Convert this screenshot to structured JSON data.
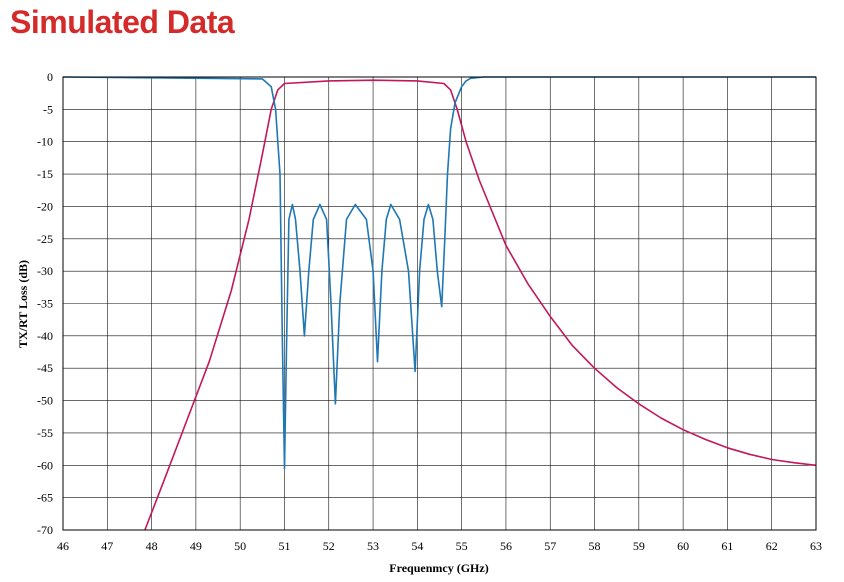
{
  "header": {
    "title": "Simulated Data"
  },
  "chart_data": {
    "type": "line",
    "xlabel": "Frequenmcy (GHz)",
    "ylabel": "TX/RT Loss (dB)",
    "xlim": [
      46,
      63
    ],
    "ylim": [
      -70,
      0
    ],
    "xticks": [
      "46",
      "47",
      "48",
      "49",
      "50",
      "51",
      "52",
      "53",
      "54",
      "55",
      "56",
      "57",
      "58",
      "59",
      "60",
      "61",
      "62",
      "63"
    ],
    "yticks": [
      "0",
      "-5",
      "-10",
      "-15",
      "-20",
      "-25",
      "-30",
      "-35",
      "-40",
      "-45",
      "-50",
      "-55",
      "-60",
      "-65",
      "-70"
    ],
    "grid": true,
    "colors": {
      "transmission": "#c2185b",
      "return": "#1f77b4"
    },
    "series": [
      {
        "key": "transmission",
        "x": [
          47.85,
          48.3,
          48.8,
          49.3,
          49.8,
          50.2,
          50.5,
          50.7,
          50.85,
          51.0,
          52.0,
          53.0,
          54.0,
          54.6,
          54.75,
          54.9,
          55.1,
          55.4,
          56.0,
          56.5,
          57.0,
          57.5,
          58.0,
          58.5,
          59.0,
          59.5,
          60.0,
          60.5,
          61.0,
          61.5,
          62.0,
          62.5,
          63.0
        ],
        "y": [
          -70,
          -62,
          -53,
          -44,
          -33,
          -22,
          -12,
          -5,
          -2,
          -1.0,
          -0.6,
          -0.5,
          -0.6,
          -1.0,
          -2,
          -5,
          -10,
          -16,
          -26,
          -32,
          -37,
          -41.5,
          -45,
          -48,
          -50.5,
          -52.7,
          -54.5,
          -56,
          -57.3,
          -58.3,
          -59.1,
          -59.6,
          -60
        ]
      },
      {
        "key": "return",
        "x": [
          46,
          50.5,
          50.7,
          50.8,
          50.9,
          50.95,
          51.0,
          51.05,
          51.1,
          51.18,
          51.25,
          51.35,
          51.45,
          51.55,
          51.65,
          51.8,
          51.95,
          52.05,
          52.15,
          52.25,
          52.4,
          52.6,
          52.85,
          53.0,
          53.1,
          53.2,
          53.3,
          53.4,
          53.6,
          53.8,
          53.95,
          54.05,
          54.15,
          54.25,
          54.35,
          54.45,
          54.55,
          54.62,
          54.68,
          54.75,
          54.85,
          55.0,
          55.1,
          55.2,
          55.5,
          56.0,
          63.0
        ],
        "y": [
          0,
          -0.3,
          -1.5,
          -5,
          -15,
          -40,
          -60.5,
          -40,
          -22,
          -19.7,
          -22,
          -30,
          -40,
          -30,
          -22,
          -19.7,
          -22,
          -35,
          -50.5,
          -35,
          -22,
          -19.7,
          -22,
          -30,
          -44,
          -30,
          -22,
          -19.7,
          -22,
          -30,
          -45.5,
          -30,
          -22,
          -19.7,
          -22,
          -30,
          -35.5,
          -25,
          -15,
          -8,
          -4,
          -1.5,
          -0.6,
          -0.2,
          0,
          0,
          0
        ]
      }
    ]
  }
}
